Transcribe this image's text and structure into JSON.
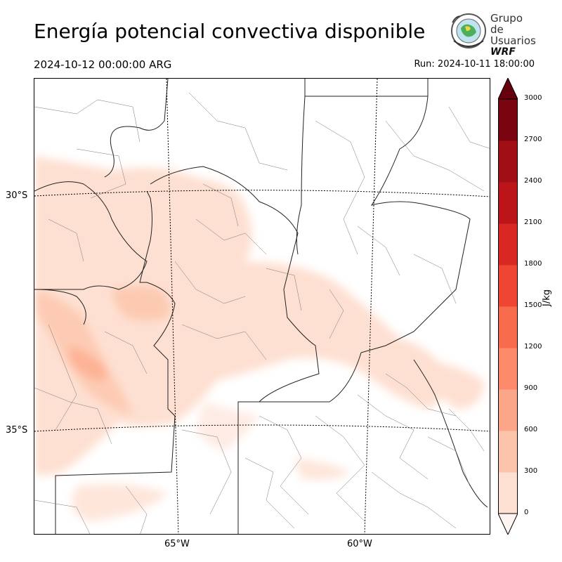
{
  "title": "Energía potencial convectiva disponible",
  "valid_time": "2024-10-12 00:00:00 ARG",
  "run_time": "Run: 2024-10-11 18:00:00",
  "logo": {
    "line1": "Grupo de",
    "line2": "Usuarios",
    "line3": "WRF",
    "icon": "globe-seal-icon"
  },
  "map": {
    "lat_labels": [
      "30°S",
      "35°S"
    ],
    "lon_labels": [
      "65°W",
      "60°W"
    ],
    "region": "Central Argentina",
    "field": "CAPE"
  },
  "colorbar": {
    "unit": "J/kg",
    "ticks": [
      "0",
      "300",
      "600",
      "900",
      "1200",
      "1500",
      "1800",
      "2100",
      "2400",
      "2700",
      "3000"
    ],
    "colors": [
      "#fff5f0",
      "#fee0d2",
      "#fcc5ab",
      "#fca689",
      "#fc8a6a",
      "#f86c4d",
      "#ef4533",
      "#d92723",
      "#bb151a",
      "#a00f15",
      "#7a0510",
      "#67000d"
    ],
    "extend": "both"
  }
}
